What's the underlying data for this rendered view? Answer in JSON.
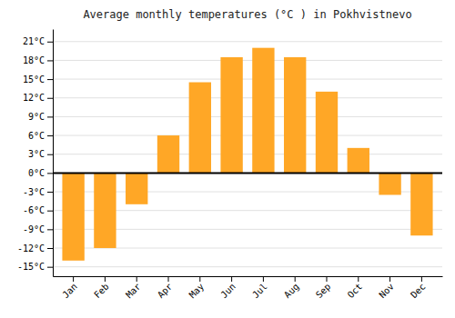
{
  "chart_data": {
    "type": "bar",
    "title": "Average monthly temperatures (°C ) in Pokhvistnevo",
    "categories": [
      "Jan",
      "Feb",
      "Mar",
      "Apr",
      "May",
      "Jun",
      "Jul",
      "Aug",
      "Sep",
      "Oct",
      "Nov",
      "Dec"
    ],
    "values": [
      -14,
      -12,
      -5,
      6,
      14.5,
      18.5,
      20,
      18.5,
      13,
      4,
      -3.5,
      -10
    ],
    "color": "#FFA726",
    "ylim": [
      -16.5,
      23
    ],
    "yticks": [
      {
        "value": -15,
        "label": "-15°C"
      },
      {
        "value": -12,
        "label": "-12°C"
      },
      {
        "value": -9,
        "label": "-9°C"
      },
      {
        "value": -6,
        "label": "-6°C"
      },
      {
        "value": -3,
        "label": "-3°C"
      },
      {
        "value": 0,
        "label": "0°C"
      },
      {
        "value": 3,
        "label": "3°C"
      },
      {
        "value": 6,
        "label": "6°C"
      },
      {
        "value": 9,
        "label": "9°C"
      },
      {
        "value": 12,
        "label": "12°C"
      },
      {
        "value": 15,
        "label": "15°C"
      },
      {
        "value": 18,
        "label": "18°C"
      },
      {
        "value": 21,
        "label": "21°C"
      }
    ],
    "grid": true
  }
}
